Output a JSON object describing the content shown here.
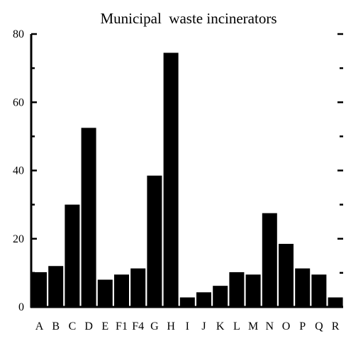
{
  "chart_data": {
    "type": "bar",
    "title": "Municipal  waste incinerators",
    "xlabel": "",
    "ylabel": "",
    "categories": [
      "A",
      "B",
      "C",
      "D",
      "E",
      "F1",
      "F4",
      "G",
      "H",
      "I",
      "J",
      "K",
      "L",
      "M",
      "N",
      "O",
      "P",
      "Q",
      "R"
    ],
    "values": [
      10.2,
      12.0,
      30.0,
      52.5,
      8.0,
      9.5,
      11.3,
      38.5,
      74.5,
      2.8,
      4.3,
      6.2,
      10.2,
      9.5,
      27.5,
      18.5,
      11.3,
      9.5,
      2.8
    ],
    "ylim": [
      0,
      80
    ],
    "yticks": [
      "0",
      "20",
      "40",
      "60",
      "80"
    ],
    "grid": false,
    "bar_color": "#000000"
  }
}
